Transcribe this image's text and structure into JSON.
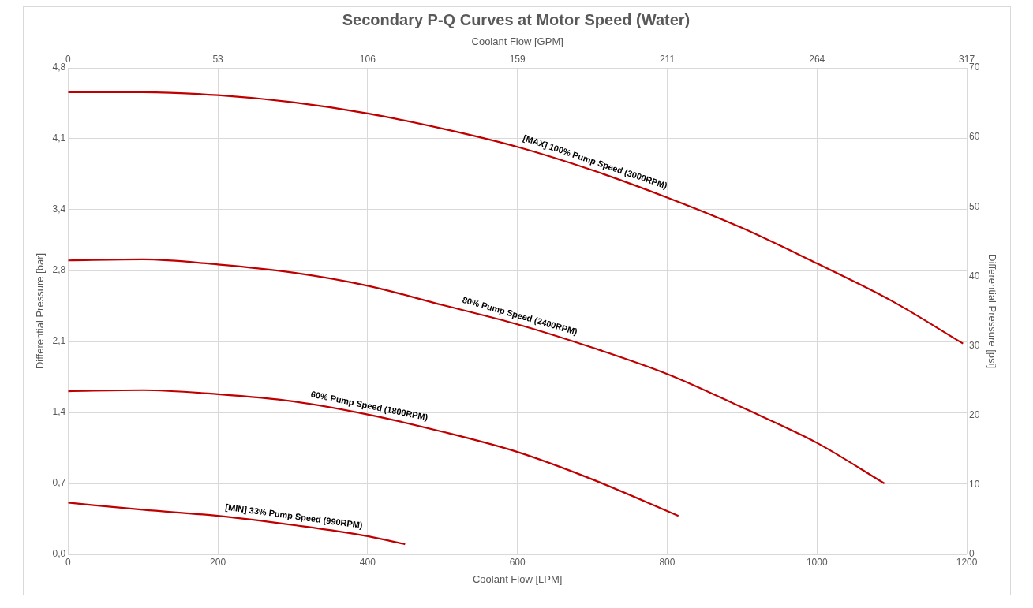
{
  "chart_data": {
    "type": "line",
    "title": "Secondary P-Q Curves at Motor Speed (Water)",
    "xlabel": "Coolant Flow [LPM]",
    "x2label": "Coolant Flow [GPM]",
    "ylabel": "Differential Pressure [bar]",
    "y2label": "Differential Pressure [psi]",
    "xlim": [
      0,
      1200
    ],
    "xticks": [
      0,
      200,
      400,
      600,
      800,
      1000,
      1200
    ],
    "x2lim": [
      0,
      317
    ],
    "x2ticks": [
      0,
      {
        "value": 52.83,
        "label": "53"
      },
      {
        "value": 105.67,
        "label": "106"
      },
      {
        "value": 158.5,
        "label": "159"
      },
      {
        "value": 211.34,
        "label": "211"
      },
      {
        "value": 264.17,
        "label": "264"
      },
      317
    ],
    "ylim": [
      0,
      4.8
    ],
    "yticks": [
      {
        "value": 0,
        "label": "0,0"
      },
      {
        "value": 0.7,
        "label": "0,7"
      },
      {
        "value": 1.4,
        "label": "1,4"
      },
      {
        "value": 2.1,
        "label": "2,1"
      },
      {
        "value": 2.8,
        "label": "2,8"
      },
      {
        "value": 3.4,
        "label": "3,4"
      },
      {
        "value": 4.1,
        "label": "4,1"
      },
      {
        "value": 4.8,
        "label": "4,8"
      }
    ],
    "y2lim": [
      0,
      70
    ],
    "y2ticks": [
      0,
      10,
      20,
      30,
      40,
      50,
      60,
      70
    ],
    "grid": true,
    "legend": false,
    "marker": "none",
    "line_style": "solid",
    "series": [
      {
        "name": "[MAX] 100% Pump Speed (3000RPM)",
        "color": "#c00000",
        "x": [
          0,
          100,
          200,
          300,
          400,
          500,
          600,
          700,
          800,
          900,
          1000,
          1100,
          1195
        ],
        "values": [
          4.56,
          4.56,
          4.53,
          4.46,
          4.35,
          4.2,
          4.02,
          3.79,
          3.52,
          3.22,
          2.87,
          2.5,
          2.08
        ]
      },
      {
        "name": "80% Pump Speed (2400RPM)",
        "color": "#c00000",
        "x": [
          0,
          100,
          200,
          300,
          400,
          500,
          600,
          700,
          800,
          900,
          1000,
          1090
        ],
        "values": [
          2.9,
          2.91,
          2.86,
          2.78,
          2.65,
          2.46,
          2.27,
          2.04,
          1.78,
          1.45,
          1.1,
          0.7
        ]
      },
      {
        "name": "60% Pump Speed (1800RPM)",
        "color": "#c00000",
        "x": [
          0,
          100,
          200,
          300,
          400,
          500,
          600,
          700,
          815
        ],
        "values": [
          1.61,
          1.62,
          1.58,
          1.51,
          1.38,
          1.21,
          1.01,
          0.74,
          0.38
        ]
      },
      {
        "name": "[MIN] 33% Pump Speed (990RPM)",
        "color": "#c00000",
        "x": [
          0,
          100,
          200,
          300,
          400,
          450
        ],
        "values": [
          0.51,
          0.44,
          0.38,
          0.29,
          0.18,
          0.1
        ]
      }
    ]
  }
}
